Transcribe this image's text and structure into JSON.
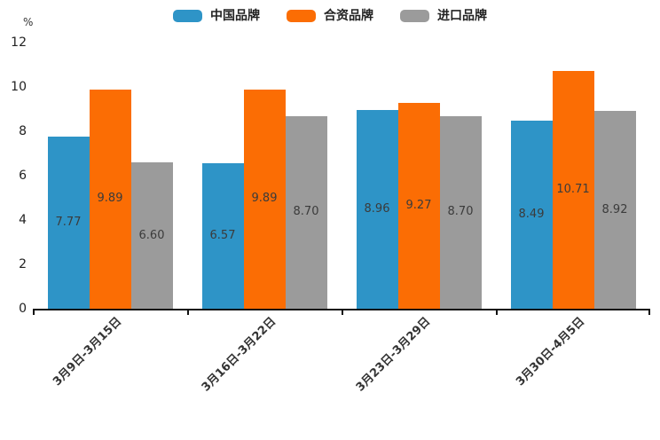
{
  "chart_data": {
    "type": "bar",
    "title": "",
    "ylabel": "%",
    "xlabel": "",
    "categories": [
      "3月9日-3月15日",
      "3月16日-3月22日",
      "3月23日-3月29日",
      "3月30日-4月5日"
    ],
    "series": [
      {
        "name": "中国品牌",
        "color": "#2E94C7",
        "values": [
          7.77,
          6.57,
          8.96,
          8.49
        ]
      },
      {
        "name": "合资品牌",
        "color": "#FB6D04",
        "values": [
          9.89,
          9.89,
          9.27,
          10.71
        ]
      },
      {
        "name": "进口品牌",
        "color": "#9B9B9B",
        "values": [
          6.6,
          8.7,
          8.7,
          8.92
        ]
      }
    ],
    "ylim": [
      0,
      12
    ],
    "yticks": [
      0,
      2,
      4,
      6,
      8,
      10,
      12
    ],
    "grid": false,
    "legend_position": "top-center",
    "value_label_position": "inside-middle",
    "x_tick_rotation_deg": 45,
    "colors": {
      "axis": "#111111",
      "tick_text": "#222222",
      "value_label_text": "#3b3b3b",
      "background": "#ffffff"
    }
  }
}
